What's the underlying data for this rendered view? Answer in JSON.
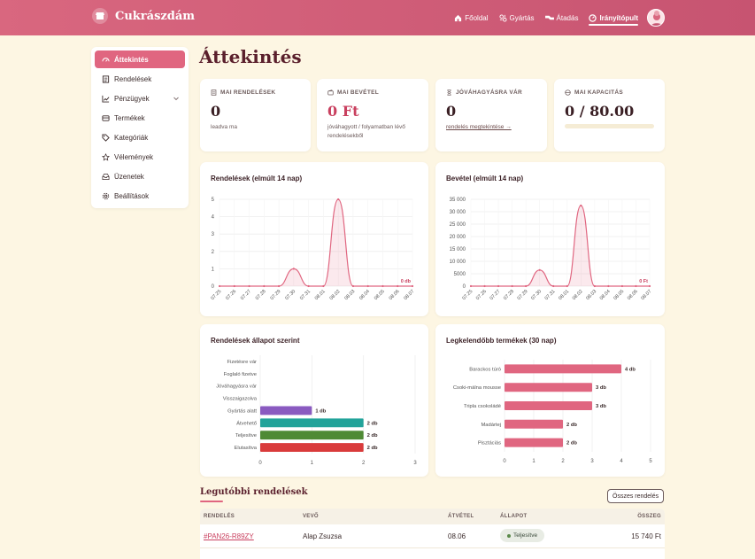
{
  "app": {
    "name": "Cukrászdám"
  },
  "nav": [
    {
      "label": "Főoldal",
      "icon": "home-icon"
    },
    {
      "label": "Gyártás",
      "icon": "production-icon"
    },
    {
      "label": "Átadás",
      "icon": "handover-icon"
    },
    {
      "label": "Irányítópult",
      "icon": "dashboard-icon",
      "active": true
    }
  ],
  "sidebar": {
    "items": [
      {
        "label": "Áttekintés",
        "icon": "gauge-icon",
        "active": true
      },
      {
        "label": "Rendelések",
        "icon": "list-icon"
      },
      {
        "label": "Pénzügyek",
        "icon": "trend-icon",
        "expandable": true
      },
      {
        "label": "Termékek",
        "icon": "box-icon"
      },
      {
        "label": "Kategóriák",
        "icon": "tag-icon"
      },
      {
        "label": "Vélemények",
        "icon": "star-icon"
      },
      {
        "label": "Üzenetek",
        "icon": "inbox-icon"
      },
      {
        "label": "Beállítások",
        "icon": "gear-icon"
      }
    ]
  },
  "page": {
    "title": "Áttekintés"
  },
  "stats": [
    {
      "label": "MAI RENDELÉSEK",
      "icon": "receipt-icon",
      "value": "0",
      "sub": "leadva ma"
    },
    {
      "label": "MAI BEVÉTEL",
      "icon": "wallet-icon",
      "value": "0 Ft",
      "sub": "jóváhagyott / folyamatban lévő rendelésekből"
    },
    {
      "label": "JÓVÁHAGYÁSRA VÁR",
      "icon": "hourglass-icon",
      "value": "0",
      "link": "rendelés megtekintése →"
    },
    {
      "label": "MAI KAPACITÁS",
      "icon": "capacity-icon",
      "value": "0 / 80.00",
      "progress": 0
    }
  ],
  "charts": {
    "orders_title": "Rendelések (elmúlt 14 nap)",
    "revenue_title": "Bevétel (elmúlt 14 nap)",
    "status_title": "Rendelések állapot szerint",
    "top_title": "Legkelendőbb termékek (30 nap)"
  },
  "chart_data": [
    {
      "type": "area",
      "title": "Rendelések (elmúlt 14 nap)",
      "x": [
        "07.25",
        "07.26",
        "07.27",
        "07.28",
        "07.29",
        "07.30",
        "07.31",
        "08.01",
        "08.02",
        "08.03",
        "08.04",
        "08.05",
        "08.06",
        "08.07"
      ],
      "values": [
        0,
        0,
        0,
        0,
        0,
        1,
        0,
        0,
        5,
        0,
        0,
        0,
        0,
        0
      ],
      "yticks": [
        "0",
        "1",
        "2",
        "3",
        "4",
        "5"
      ],
      "ylim": [
        0,
        5
      ],
      "last_label": "0 db",
      "grid": true,
      "color": "#e06680"
    },
    {
      "type": "area",
      "title": "Bevétel (elmúlt 14 nap)",
      "x": [
        "07.25",
        "07.26",
        "07.27",
        "07.28",
        "07.29",
        "07.30",
        "07.31",
        "08.01",
        "08.02",
        "08.03",
        "08.04",
        "08.05",
        "08.06",
        "08.07"
      ],
      "values": [
        0,
        0,
        0,
        0,
        0,
        6500,
        0,
        0,
        32500,
        0,
        0,
        0,
        0,
        0
      ],
      "yticks": [
        "0",
        "5000",
        "10 000",
        "15 000",
        "20 000",
        "25 000",
        "30 000",
        "35 000"
      ],
      "ylim": [
        0,
        35000
      ],
      "last_label": "0 Ft",
      "grid": true,
      "color": "#e06680"
    },
    {
      "type": "bar",
      "orientation": "horizontal",
      "title": "Rendelések állapot szerint",
      "categories": [
        "Fizetésre vár",
        "Foglaló fizetve",
        "Jóváhagyásra vár",
        "Visszaigazolva",
        "Gyártás alatt",
        "Átvehető",
        "Teljesítve",
        "Elutasítva"
      ],
      "values": [
        0,
        0,
        0,
        0,
        1,
        2,
        2,
        2
      ],
      "labels": [
        "",
        "",
        "",
        "",
        "1 db",
        "2 db",
        "2 db",
        "2 db"
      ],
      "colors": [
        "#cccccc",
        "#cccccc",
        "#cccccc",
        "#cccccc",
        "#8a5ac0",
        "#22a39a",
        "#4f8a35",
        "#d93b3b"
      ],
      "xticks": [
        "0",
        "1",
        "2",
        "3"
      ],
      "xlim": [
        0,
        3
      ],
      "grid": true
    },
    {
      "type": "bar",
      "orientation": "horizontal",
      "title": "Legkelendőbb termékek (30 nap)",
      "categories": [
        "Barackos túró",
        "Csoki-málna mousse",
        "Tripla csokoládé",
        "Madártej",
        "Pisztáciás"
      ],
      "values": [
        4,
        3,
        3,
        2,
        2
      ],
      "labels": [
        "4 db",
        "3 db",
        "3 db",
        "2 db",
        "2 db"
      ],
      "color": "#e06680",
      "xticks": [
        "0",
        "1",
        "2",
        "3",
        "4",
        "5"
      ],
      "xlim": [
        0,
        5
      ],
      "grid": true
    }
  ],
  "recent": {
    "title": "Legutóbbi rendelések",
    "all_button": "Összes rendelés",
    "columns": [
      "RENDELÉS",
      "VEVŐ",
      "ÁTVÉTEL",
      "ÁLLAPOT",
      "ÖSSZEG"
    ],
    "rows": [
      {
        "id": "#PAN26-R89ZY",
        "customer": "Alap Zsuzsa",
        "date": "08.06",
        "status": "Teljesítve",
        "amount": "15 740 Ft"
      }
    ]
  }
}
